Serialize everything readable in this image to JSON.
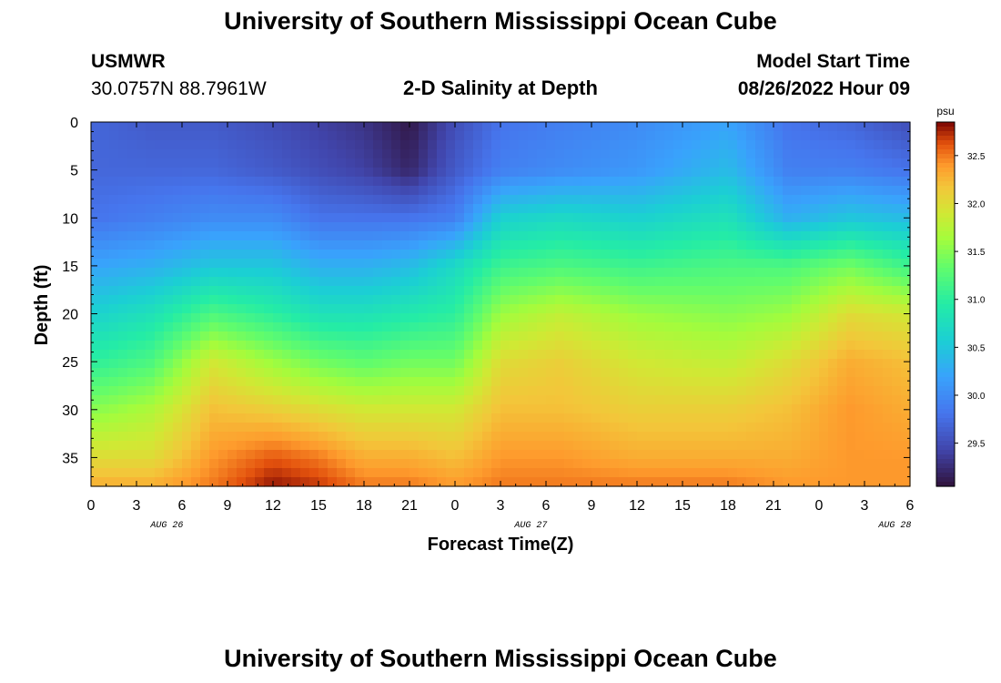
{
  "header": {
    "title": "University of Southern Mississippi Ocean Cube",
    "station": "USMWR",
    "latlon": "30.0757N  88.7961W",
    "subtitle": "2-D Salinity at Depth",
    "start_label": "Model Start Time",
    "start_value": "08/26/2022 Hour 09",
    "footer_title": "University of Southern Mississippi Ocean Cube"
  },
  "chart_data": {
    "type": "heatmap",
    "title": "2-D Salinity at Depth",
    "xlabel": "Forecast Time(Z)",
    "ylabel": "Depth (ft)",
    "x_ticks": [
      "0",
      "3",
      "6",
      "9",
      "12",
      "15",
      "18",
      "21",
      "0",
      "3",
      "6",
      "9",
      "12",
      "15",
      "18",
      "21",
      "0",
      "3",
      "6"
    ],
    "date_labels": [
      {
        "label": "AUG 26",
        "at_hour": 14
      },
      {
        "label": "AUG 27",
        "at_hour": 38
      },
      {
        "label": "AUG 28",
        "at_hour": 62
      }
    ],
    "x_range_hours": [
      0,
      54
    ],
    "y_ticks": [
      0,
      5,
      10,
      15,
      20,
      25,
      30,
      35
    ],
    "y_range_ft": [
      0,
      38
    ],
    "colorbar": {
      "unit": "psu",
      "ticks": [
        "29.5",
        "30.0",
        "30.5",
        "31.0",
        "31.5",
        "32.0",
        "32.5"
      ],
      "range": [
        29.05,
        32.85
      ]
    },
    "profiles_note": "Salinity (psu) sampled at depths 0,5,10,15,20,25,30,35,38 ft for each forecast hour",
    "profile_depths_ft": [
      0,
      5,
      10,
      15,
      20,
      25,
      30,
      35,
      38
    ],
    "profiles": [
      {
        "hour": 0,
        "salinity": [
          29.7,
          29.7,
          29.8,
          30.2,
          30.6,
          31.0,
          31.5,
          32.0,
          32.3
        ]
      },
      {
        "hour": 4,
        "salinity": [
          29.6,
          29.7,
          29.9,
          30.3,
          30.8,
          31.2,
          31.7,
          32.0,
          32.3
        ]
      },
      {
        "hour": 8,
        "salinity": [
          29.6,
          29.7,
          30.0,
          30.5,
          31.2,
          31.9,
          32.2,
          32.4,
          32.5
        ]
      },
      {
        "hour": 12,
        "salinity": [
          29.5,
          29.6,
          30.0,
          30.5,
          31.0,
          31.6,
          32.1,
          32.6,
          32.8
        ]
      },
      {
        "hour": 15,
        "salinity": [
          29.4,
          29.5,
          29.8,
          30.3,
          30.8,
          31.4,
          32.0,
          32.5,
          32.7
        ]
      },
      {
        "hour": 18,
        "salinity": [
          29.3,
          29.4,
          29.8,
          30.3,
          30.8,
          31.3,
          31.9,
          32.3,
          32.5
        ]
      },
      {
        "hour": 21,
        "salinity": [
          29.1,
          29.2,
          29.8,
          30.4,
          30.9,
          31.4,
          31.9,
          32.3,
          32.5
        ]
      },
      {
        "hour": 24,
        "salinity": [
          29.5,
          29.6,
          29.9,
          30.7,
          31.0,
          31.4,
          31.9,
          32.2,
          32.4
        ]
      },
      {
        "hour": 27,
        "salinity": [
          29.8,
          29.9,
          30.6,
          31.1,
          31.6,
          32.0,
          32.2,
          32.4,
          32.5
        ]
      },
      {
        "hour": 31,
        "salinity": [
          29.9,
          30.0,
          30.7,
          31.2,
          31.8,
          32.1,
          32.2,
          32.4,
          32.5
        ]
      },
      {
        "hour": 36,
        "salinity": [
          30.0,
          30.1,
          30.6,
          31.1,
          31.6,
          31.9,
          32.1,
          32.3,
          32.5
        ]
      },
      {
        "hour": 42,
        "salinity": [
          30.2,
          30.4,
          30.8,
          31.2,
          31.5,
          31.8,
          32.1,
          32.3,
          32.5
        ]
      },
      {
        "hour": 46,
        "salinity": [
          29.8,
          29.9,
          30.3,
          31.2,
          31.6,
          32.0,
          32.2,
          32.3,
          32.4
        ]
      },
      {
        "hour": 50,
        "salinity": [
          29.7,
          29.9,
          30.5,
          31.4,
          32.0,
          32.3,
          32.4,
          32.4,
          32.4
        ]
      },
      {
        "hour": 54,
        "salinity": [
          29.5,
          29.8,
          30.4,
          31.1,
          31.9,
          32.2,
          32.3,
          32.4,
          32.4
        ]
      }
    ]
  }
}
